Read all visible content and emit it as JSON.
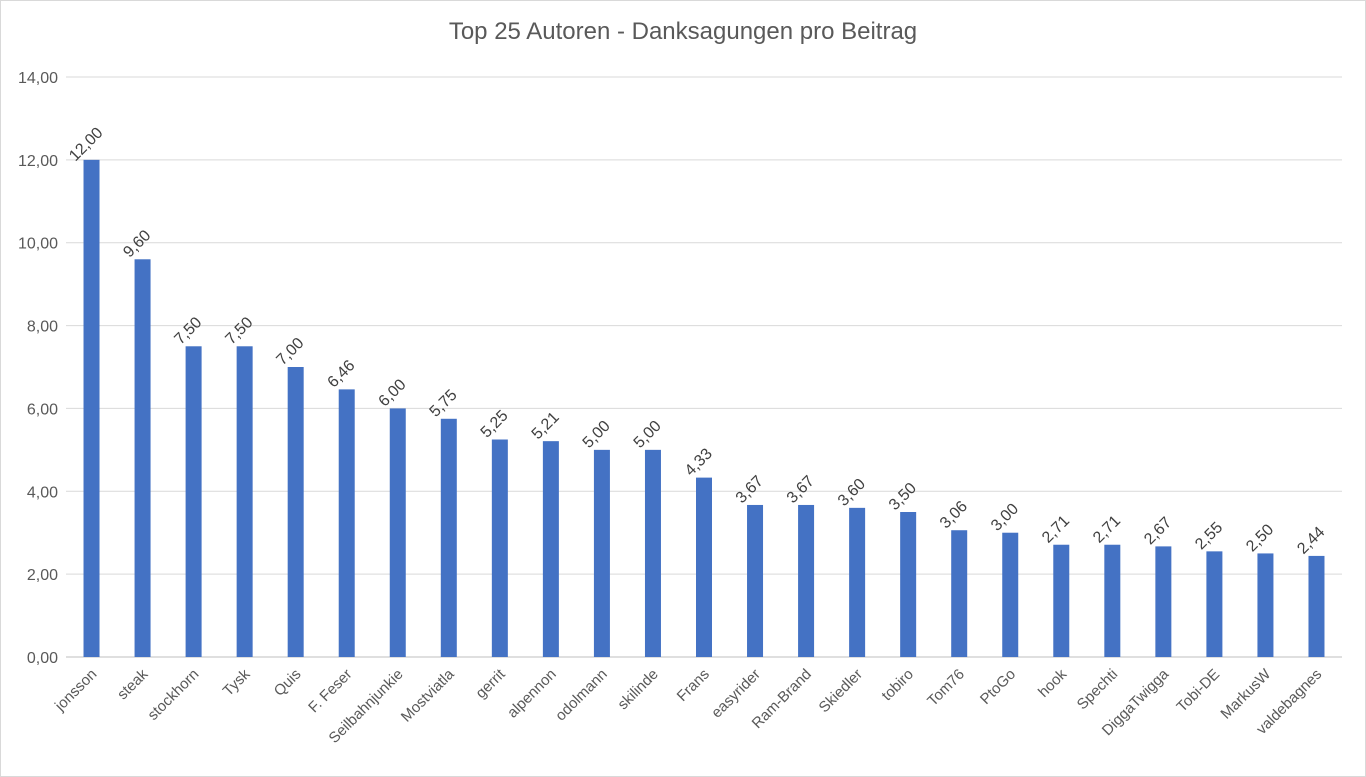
{
  "chart_data": {
    "type": "bar",
    "title": "Top 25 Autoren - Danksagungen pro Beitrag",
    "xlabel": "",
    "ylabel": "",
    "ylim": [
      0,
      14
    ],
    "yticks": [
      "0,00",
      "2,00",
      "4,00",
      "6,00",
      "8,00",
      "10,00",
      "12,00",
      "14,00"
    ],
    "grid": true,
    "bar_color": "#4472C4",
    "categories": [
      "jonsson",
      "steak",
      "stockhorn",
      "Tysk",
      "Quis",
      "F. Feser",
      "Seilbahnjunkie",
      "Mostviatla",
      "gerrit",
      "alpennon",
      "odolmann",
      "skilinde",
      "Frans",
      "easyrider",
      "Ram-Brand",
      "Skiedler",
      "tobiro",
      "Tom76",
      "PtoGo",
      "hook",
      "Spechti",
      "DiggaTwigga",
      "Tobi-DE",
      "MarkusW",
      "valdebagnes"
    ],
    "values": [
      12.0,
      9.6,
      7.5,
      7.5,
      7.0,
      6.46,
      6.0,
      5.75,
      5.25,
      5.21,
      5.0,
      5.0,
      4.33,
      3.67,
      3.67,
      3.6,
      3.5,
      3.06,
      3.0,
      2.71,
      2.71,
      2.67,
      2.55,
      2.5,
      2.44
    ],
    "value_labels": [
      "12,00",
      "9,60",
      "7,50",
      "7,50",
      "7,00",
      "6,46",
      "6,00",
      "5,75",
      "5,25",
      "5,21",
      "5,00",
      "5,00",
      "4,33",
      "3,67",
      "3,67",
      "3,60",
      "3,50",
      "3,06",
      "3,00",
      "2,71",
      "2,71",
      "2,67",
      "2,55",
      "2,50",
      "2,44"
    ]
  }
}
